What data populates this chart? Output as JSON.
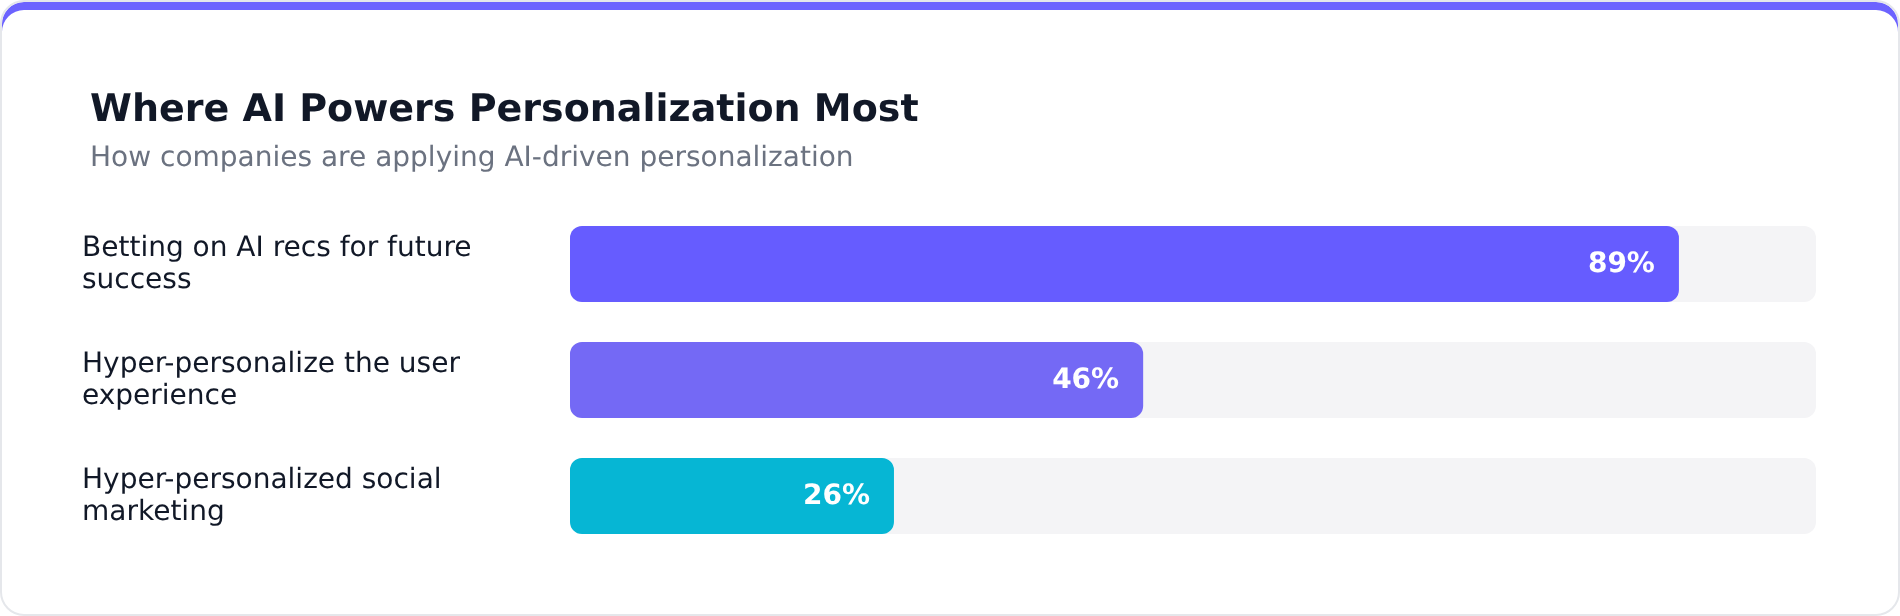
{
  "chart_data": {
    "type": "bar",
    "title": "Where AI Powers Personalization Most",
    "subtitle": "How companies are applying AI-driven personalization",
    "orientation": "horizontal",
    "categories": [
      "Betting on AI recs for future success",
      "Hyper-personalize the user experience",
      "Hyper-personalized social marketing"
    ],
    "values": [
      89,
      46,
      26
    ],
    "colors": [
      "#665cff",
      "#7469f5",
      "#06b6d4"
    ],
    "value_labels": [
      "89%",
      "46%",
      "26%"
    ],
    "xlim": [
      0,
      100
    ],
    "tick_labels": "y",
    "grid": false
  }
}
